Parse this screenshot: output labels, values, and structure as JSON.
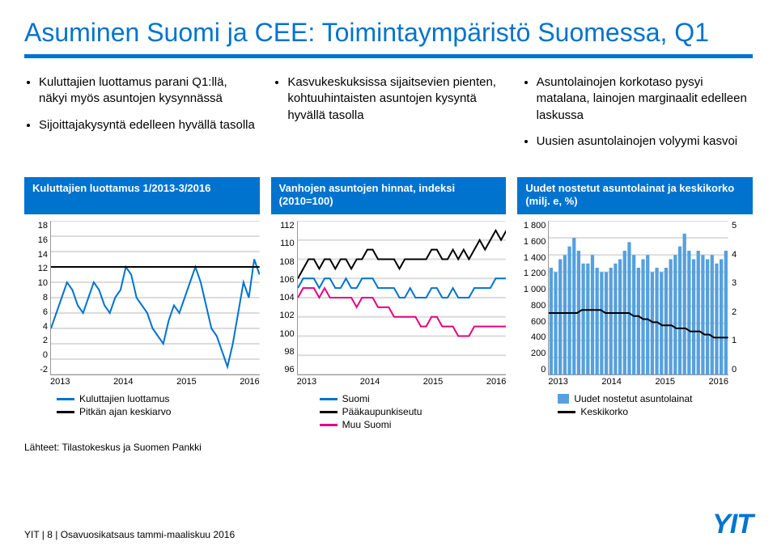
{
  "title": "Asuminen Suomi ja CEE: Toimintaympäristö Suomessa, Q1",
  "colors": {
    "brand": "#0073cf",
    "text": "#000000",
    "grid": "#dcdcdc",
    "axis": "#999999",
    "magenta": "#e6007e",
    "bar": "#0073cf"
  },
  "bullet_columns": [
    [
      "Kuluttajien luottamus parani Q1:llä, näkyi myös asuntojen kysynnässä",
      "Sijoittajakysyntä edelleen hyvällä tasolla"
    ],
    [
      "Kasvukeskuksissa sijaitsevien pienten, kohtuuhintaisten asuntojen kysyntä hyvällä tasolla"
    ],
    [
      "Asuntolainojen korkotaso pysyi matalana, lainojen marginaalit edelleen laskussa",
      "Uusien asuntolainojen volyymi kasvoi"
    ]
  ],
  "chart1": {
    "title": "Kuluttajien luottamus 1/2013-3/2016",
    "type": "line",
    "ylim": [
      -2,
      18
    ],
    "ytick_step": 2,
    "xlabels": [
      "2013",
      "2014",
      "2015",
      "2016"
    ],
    "series": [
      {
        "name": "Kuluttajien luottamus",
        "color": "#0073cf",
        "width": 2,
        "values": [
          4,
          6,
          8,
          10,
          9,
          7,
          6,
          8,
          10,
          9,
          7,
          6,
          8,
          9,
          12,
          11,
          8,
          7,
          6,
          4,
          3,
          2,
          5,
          7,
          6,
          8,
          10,
          12,
          10,
          7,
          4,
          3,
          1,
          -1,
          2,
          6,
          10,
          8,
          13,
          11
        ]
      },
      {
        "name": "Pitkän ajan keskiarvo",
        "color": "#000000",
        "width": 2,
        "values": [
          12,
          12,
          12,
          12,
          12,
          12,
          12,
          12,
          12,
          12,
          12,
          12,
          12,
          12,
          12,
          12,
          12,
          12,
          12,
          12,
          12,
          12,
          12,
          12,
          12,
          12,
          12,
          12,
          12,
          12,
          12,
          12,
          12,
          12,
          12,
          12,
          12,
          12,
          12,
          12
        ]
      }
    ],
    "legend": [
      "Kuluttajien luottamus",
      "Pitkän ajan keskiarvo"
    ]
  },
  "chart2": {
    "title": "Vanhojen asuntojen hinnat, indeksi (2010=100)",
    "type": "line",
    "ylim": [
      96,
      112
    ],
    "ytick_step": 2,
    "xlabels": [
      "2013",
      "2014",
      "2015",
      "2016"
    ],
    "series": [
      {
        "name": "Suomi",
        "color": "#0073cf",
        "width": 2,
        "values": [
          105,
          106,
          106,
          106,
          105,
          106,
          106,
          105,
          105,
          106,
          105,
          105,
          106,
          106,
          106,
          105,
          105,
          105,
          105,
          104,
          104,
          105,
          104,
          104,
          104,
          105,
          105,
          104,
          104,
          105,
          104,
          104,
          104,
          105,
          105,
          105,
          105,
          106,
          106,
          106
        ]
      },
      {
        "name": "Pääkaupunkiseutu",
        "color": "#000000",
        "width": 2,
        "values": [
          106,
          107,
          108,
          108,
          107,
          108,
          108,
          107,
          108,
          108,
          107,
          108,
          108,
          109,
          109,
          108,
          108,
          108,
          108,
          107,
          108,
          108,
          108,
          108,
          108,
          109,
          109,
          108,
          108,
          109,
          108,
          109,
          108,
          109,
          110,
          109,
          110,
          111,
          110,
          111
        ]
      },
      {
        "name": "Muu Suomi",
        "color": "#e6007e",
        "width": 2,
        "values": [
          104,
          105,
          105,
          105,
          104,
          105,
          104,
          104,
          104,
          104,
          104,
          103,
          104,
          104,
          104,
          103,
          103,
          103,
          102,
          102,
          102,
          102,
          102,
          101,
          101,
          102,
          102,
          101,
          101,
          101,
          100,
          100,
          100,
          101,
          101,
          101,
          101,
          101,
          101,
          101
        ]
      }
    ],
    "legend": [
      "Suomi",
      "Pääkaupunkiseutu",
      "Muu Suomi"
    ]
  },
  "chart3": {
    "title": "Uudet nostetut asuntolainat ja keskikorko (milj. e, %)",
    "type": "combo",
    "ylim": [
      0,
      1800
    ],
    "ytick_step": 200,
    "ylim2": [
      0.0,
      5.0
    ],
    "ytick2_step": 1.0,
    "xlabels": [
      "2013",
      "2014",
      "2015",
      "2016"
    ],
    "bars": {
      "name": "Uudet nostetut asuntolainat",
      "color": "#0073cf",
      "values": [
        1250,
        1200,
        1350,
        1400,
        1500,
        1600,
        1450,
        1300,
        1300,
        1400,
        1250,
        1200,
        1200,
        1250,
        1300,
        1350,
        1450,
        1550,
        1400,
        1250,
        1350,
        1400,
        1200,
        1250,
        1200,
        1250,
        1350,
        1400,
        1500,
        1650,
        1450,
        1350,
        1450,
        1400,
        1350,
        1400,
        1300,
        1350,
        1450
      ]
    },
    "line": {
      "name": "Keskikorko",
      "color": "#000000",
      "width": 2,
      "values": [
        2.0,
        2.0,
        2.0,
        2.0,
        2.0,
        2.0,
        2.0,
        2.1,
        2.1,
        2.1,
        2.1,
        2.1,
        2.0,
        2.0,
        2.0,
        2.0,
        2.0,
        2.0,
        1.9,
        1.9,
        1.8,
        1.8,
        1.7,
        1.7,
        1.6,
        1.6,
        1.6,
        1.5,
        1.5,
        1.5,
        1.4,
        1.4,
        1.4,
        1.3,
        1.3,
        1.2,
        1.2,
        1.2,
        1.2
      ]
    },
    "legend": [
      "Uudet nostetut asuntolainat",
      "Keskikorko"
    ]
  },
  "sources": "Lähteet: Tilastokeskus ja Suomen Pankki",
  "footer_left": "YIT  |  8  |  Osavuosikatsaus tammi-maaliskuu 2016",
  "logo": "YIT"
}
